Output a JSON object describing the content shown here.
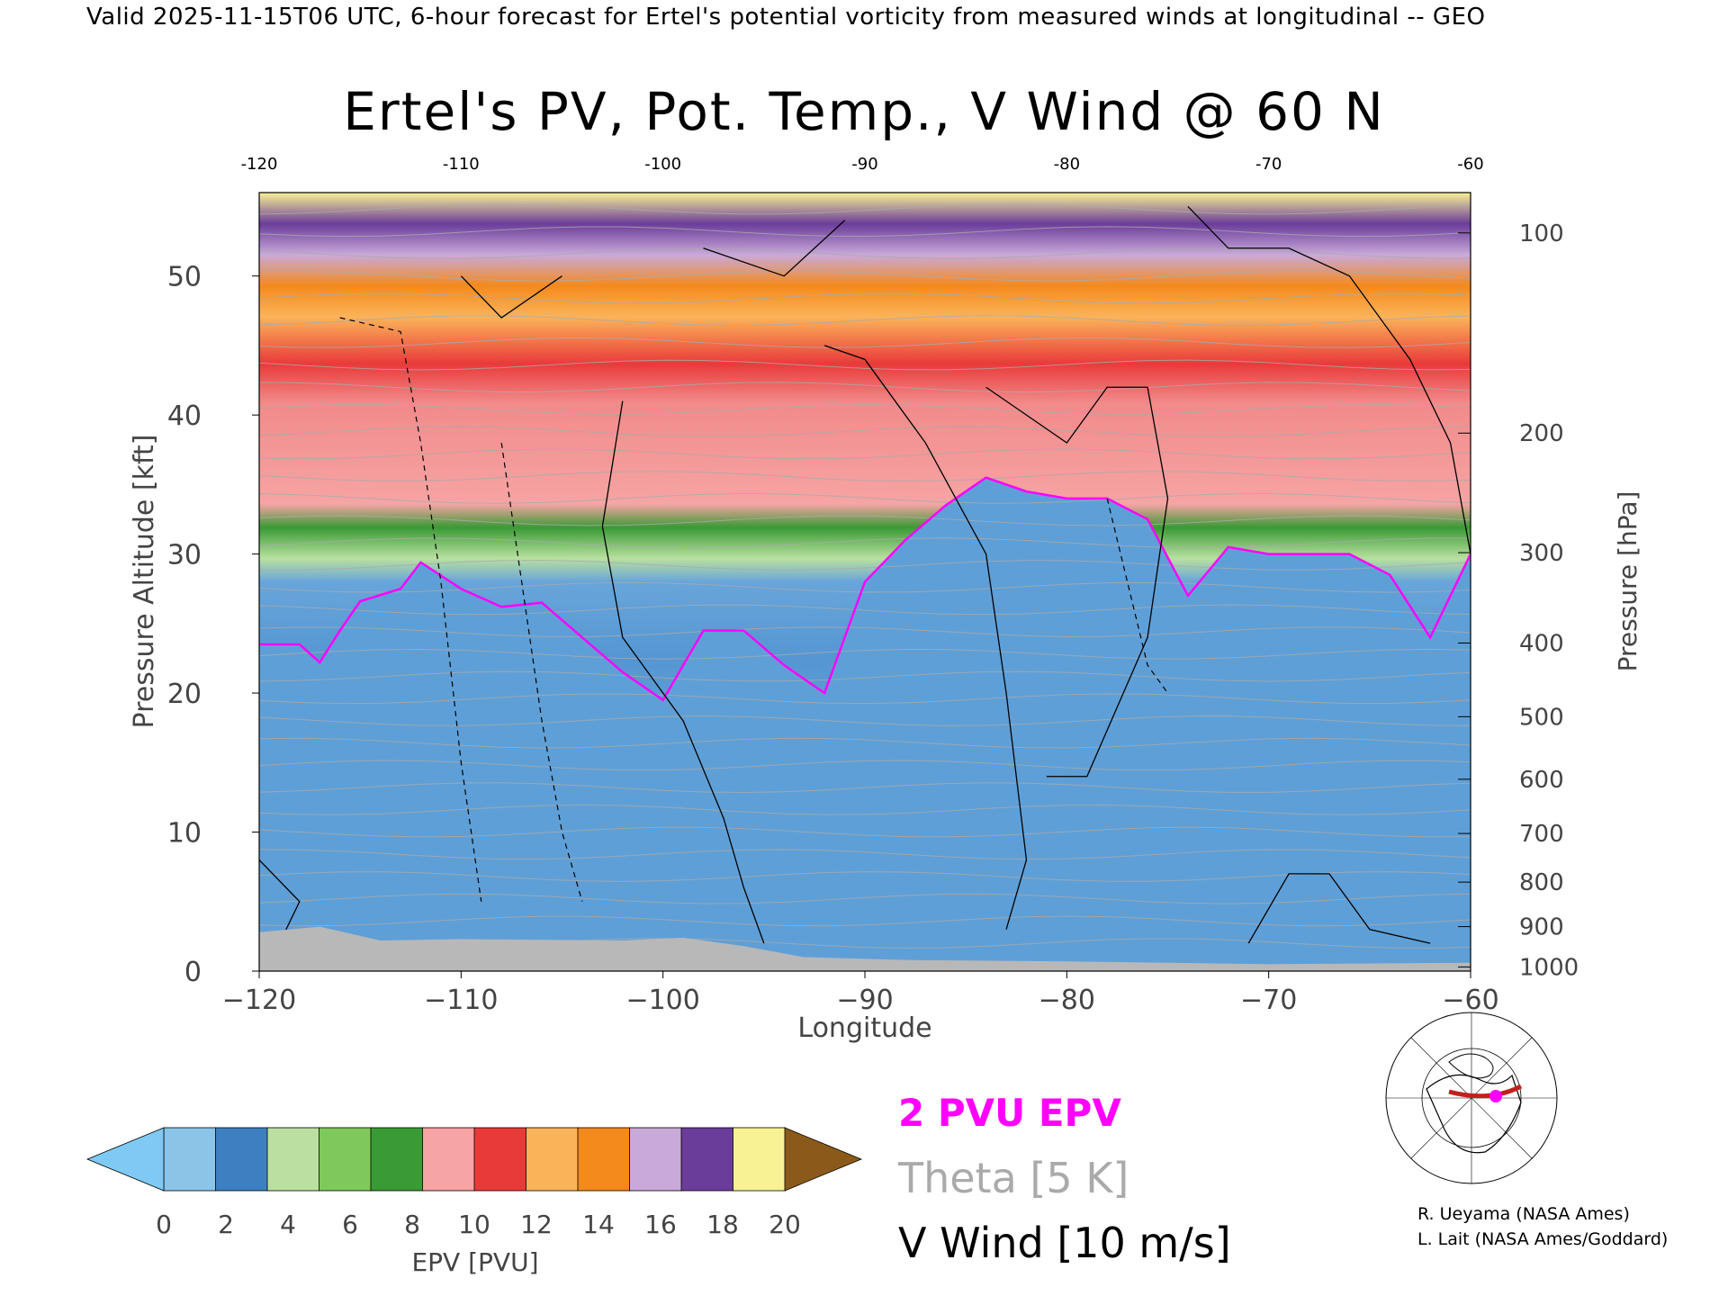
{
  "header": {
    "text": "Valid 2025-11-15T06 UTC, 6-hour forecast for Ertel's potential vorticity from measured winds at longitudinal -- GEO"
  },
  "chart_data": {
    "type": "heatmap",
    "title": "Ertel's PV, Pot. Temp., V Wind @ 60 N",
    "xlabel": "Longitude",
    "ylabel": "Pressure Altitude [kft]",
    "ylabel_right": "Pressure [hPa]",
    "xlim": [
      -120,
      -60
    ],
    "ylim": [
      0,
      56
    ],
    "x_ticks": [
      -120,
      -110,
      -100,
      -90,
      -80,
      -70,
      -60
    ],
    "x_tick_labels": [
      "−120",
      "−110",
      "−100",
      "−90",
      "−80",
      "−70",
      "−60"
    ],
    "x_top_tick_labels": [
      "-120",
      "-110",
      "-100",
      "-90",
      "-80",
      "-70",
      "-60"
    ],
    "y_ticks": [
      0,
      10,
      20,
      30,
      40,
      50
    ],
    "y_tick_labels": [
      "0",
      "10",
      "20",
      "30",
      "40",
      "50"
    ],
    "pressure_ticks": [
      {
        "label": "100",
        "kft": 53.1
      },
      {
        "label": "200",
        "kft": 38.7
      },
      {
        "label": "300",
        "kft": 30.1
      },
      {
        "label": "400",
        "kft": 23.6
      },
      {
        "label": "500",
        "kft": 18.3
      },
      {
        "label": "600",
        "kft": 13.8
      },
      {
        "label": "700",
        "kft": 9.9
      },
      {
        "label": "800",
        "kft": 6.4
      },
      {
        "label": "900",
        "kft": 3.2
      },
      {
        "label": "1000",
        "kft": 0.3
      }
    ],
    "tropopause_2pvu_kft": [
      [
        -120,
        23.5
      ],
      [
        -118,
        23.5
      ],
      [
        -117,
        22.2
      ],
      [
        -116,
        24.5
      ],
      [
        -115,
        26.6
      ],
      [
        -113,
        27.5
      ],
      [
        -112,
        29.4
      ],
      [
        -110,
        27.5
      ],
      [
        -108,
        26.2
      ],
      [
        -106,
        26.5
      ],
      [
        -104,
        24.0
      ],
      [
        -102,
        21.5
      ],
      [
        -100,
        19.5
      ],
      [
        -98,
        24.5
      ],
      [
        -96,
        24.5
      ],
      [
        -94,
        22.0
      ],
      [
        -92,
        20.0
      ],
      [
        -90,
        28.0
      ],
      [
        -88,
        31.0
      ],
      [
        -86,
        33.5
      ],
      [
        -84,
        35.5
      ],
      [
        -82,
        34.5
      ],
      [
        -80,
        34.0
      ],
      [
        -78,
        34.0
      ],
      [
        -76,
        32.5
      ],
      [
        -74,
        27.0
      ],
      [
        -72,
        30.5
      ],
      [
        -70,
        30.0
      ],
      [
        -66,
        30.0
      ],
      [
        -64,
        28.5
      ],
      [
        -62,
        24.0
      ],
      [
        -60,
        30.0
      ]
    ],
    "colorbar": {
      "label": "EPV [PVU]",
      "tick_labels": [
        "0",
        "2",
        "4",
        "6",
        "8",
        "10",
        "12",
        "14",
        "16",
        "18",
        "20"
      ],
      "under_color": "#7fc9f5",
      "over_color": "#8b5a1a",
      "colors": [
        "#8cc4e8",
        "#3d7fc1",
        "#b9e0a0",
        "#7fc95c",
        "#3a9a35",
        "#f6a4a4",
        "#e93a3a",
        "#fbb35a",
        "#f48a1c",
        "#c9a9d9",
        "#6a3d9a",
        "#f8f294"
      ]
    },
    "legend": [
      {
        "label": "2 PVU EPV",
        "color": "#ff00ff"
      },
      {
        "label": "Theta [5 K]",
        "color": "#aaaaaa"
      },
      {
        "label": "V Wind [10 m/s]",
        "color": "#000000"
      }
    ]
  },
  "credits": {
    "line1": "R. Ueyama (NASA Ames)",
    "line2": "L. Lait (NASA Ames/Goddard)"
  },
  "colors": {
    "pv_contour": "#ff00ff",
    "theta_contour": "#aaaaaa",
    "wind_contour": "#000000",
    "ground": "#b8b8b8"
  }
}
